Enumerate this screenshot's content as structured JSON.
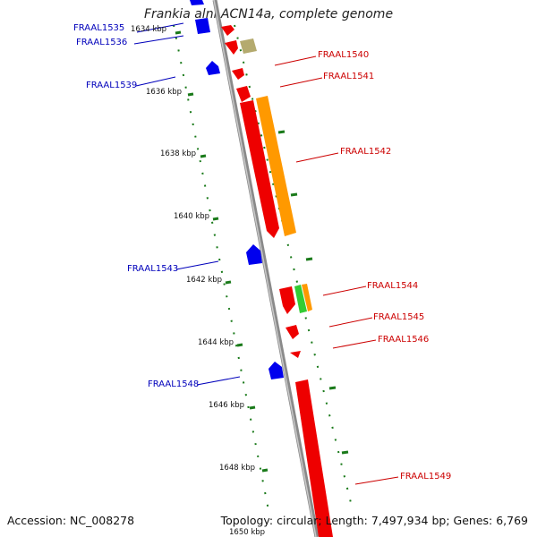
{
  "title": "Frankia alni ACN14a, complete genome",
  "footer": {
    "accession": "Accession: NC_008278",
    "summary": "Topology: circular; Length: 7,497,934 bp; Genes: 6,769"
  },
  "colors": {
    "backbone": "#8a8a8a",
    "ruler_tick": "#1a7a1a",
    "reverse_gene": "#0000ee",
    "forward_gene": "#ee0000",
    "orange_gene": "#ff9900",
    "green_gene": "#33cc33",
    "khaki_gene": "#b4aa6e",
    "reverse_label": "#0000bb",
    "forward_label": "#cc0000"
  },
  "ruler_labels": [
    "1634 kbp",
    "1636 kbp",
    "1638 kbp",
    "1640 kbp",
    "1642 kbp",
    "1644 kbp",
    "1646 kbp",
    "1648 kbp",
    "1650 kbp"
  ],
  "gene_labels": {
    "reverse": [
      "FRAAL1535",
      "FRAAL1536",
      "FRAAL1539",
      "FRAAL1543",
      "FRAAL1548"
    ],
    "forward": [
      "FRAAL1540",
      "FRAAL1541",
      "FRAAL1542",
      "FRAAL1544",
      "FRAAL1545",
      "FRAAL1546",
      "FRAAL1549"
    ]
  }
}
